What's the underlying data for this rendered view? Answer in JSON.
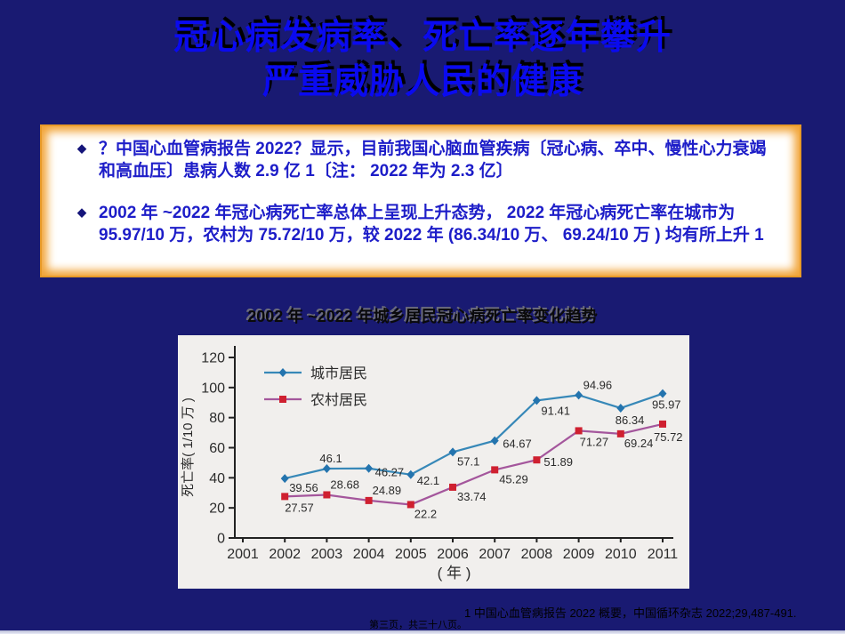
{
  "slide": {
    "title": {
      "line1": "冠心病发病率、死亡率逐年攀升",
      "line2": "严重威胁人民的健康"
    },
    "bullets": [
      {
        "marker": "◆",
        "text": "？中国心血管病报告 2022？显示，目前我国心脑血管疾病〔冠心病、卒中、慢性心力衰竭和高血压〕患病人数 2.9 亿 1〔注： 2022 年为 2.3 亿〕"
      },
      {
        "marker": "◆",
        "text": "2002 年 ~2022 年冠心病死亡率总体上呈现上升态势， 2022 年冠心病死亡率在城市为 95.97/10 万，农村为 75.72/10 万，较 2022 年 (86.34/10 万、 69.24/10 万 ) 均有所上升 1"
      }
    ],
    "chart_caption": "2002 年 ~2022 年城乡居民冠心病死亡率变化趋势",
    "footnote": "1  中国心血管病报告 2022 概要，中国循环杂志  2022;29,487-491.",
    "page_label": "第三页，共三十八页。"
  },
  "colors": {
    "slide_background": "#191a72",
    "title_blue": "#0a0af0",
    "title_shadow": "#000000",
    "body_text_blue": "#1d1dc8",
    "box_background": "#ffffff",
    "box_border_orange": "#f2a437",
    "chart_background": "#f1efed",
    "urban_line": "#3788b8",
    "urban_marker": "#2474ae",
    "rural_line": "#a4569c",
    "rural_marker": "#cf2030",
    "axis_color": "#222222"
  },
  "chart_data": {
    "type": "line",
    "title": "2002 年 ~2022 年城乡居民冠心病死亡率变化趋势",
    "xlabel": "( 年 )",
    "ylabel": "死亡率( 1/10 万 )",
    "x_ticks": [
      2001,
      2002,
      2003,
      2004,
      2005,
      2006,
      2007,
      2008,
      2009,
      2010,
      2011
    ],
    "y_ticks": [
      0,
      20,
      40,
      60,
      80,
      100,
      120
    ],
    "ylim": [
      0,
      120
    ],
    "grid": false,
    "legend_position": "top-left",
    "categories": [
      2002,
      2003,
      2004,
      2005,
      2006,
      2007,
      2008,
      2009,
      2010,
      2011
    ],
    "series": [
      {
        "name": "城市居民",
        "marker": "diamond",
        "line_color": "#3788b8",
        "marker_color": "#2474ae",
        "values": [
          39.56,
          46.1,
          46.27,
          42.1,
          57.1,
          64.67,
          91.41,
          94.96,
          86.34,
          95.97
        ]
      },
      {
        "name": "农村居民",
        "marker": "square",
        "line_color": "#a4569c",
        "marker_color": "#cf2030",
        "values": [
          27.57,
          28.68,
          24.89,
          22.2,
          33.74,
          45.29,
          51.89,
          71.27,
          69.24,
          75.72
        ]
      }
    ]
  }
}
